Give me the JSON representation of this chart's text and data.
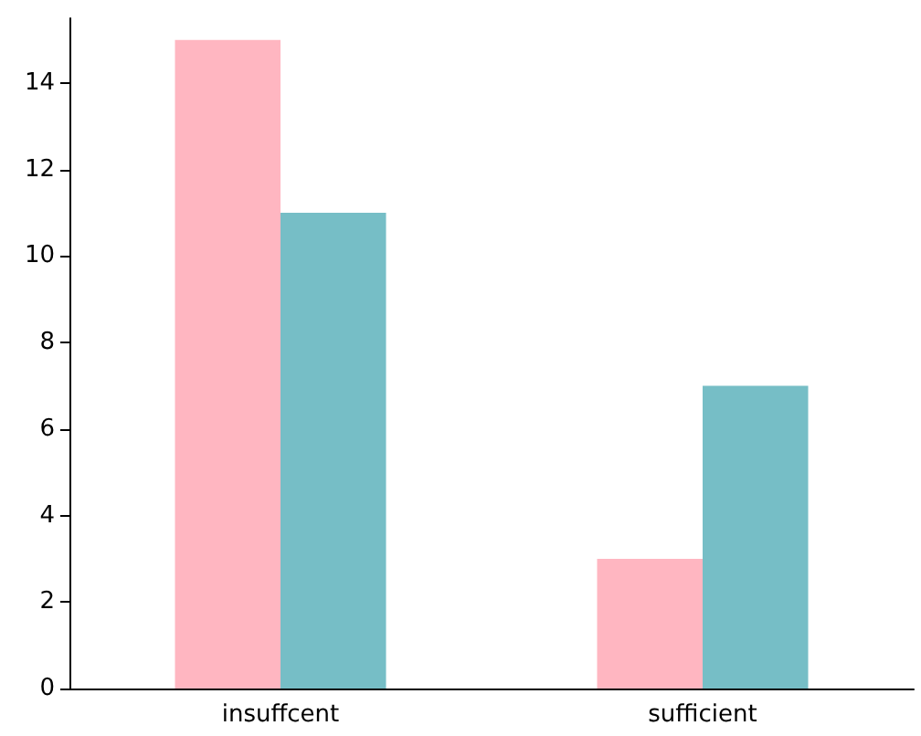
{
  "chart_data": {
    "type": "bar",
    "categories": [
      "insuffcent",
      "sufficient"
    ],
    "series": [
      {
        "color": "#ffb6c1",
        "values": [
          15,
          3
        ]
      },
      {
        "color": "#76bec6",
        "values": [
          11,
          7
        ]
      }
    ],
    "ylim": [
      0,
      15.5
    ],
    "yticks": [
      0,
      2,
      4,
      6,
      8,
      10,
      12,
      14
    ],
    "grid": false,
    "legend": false
  }
}
